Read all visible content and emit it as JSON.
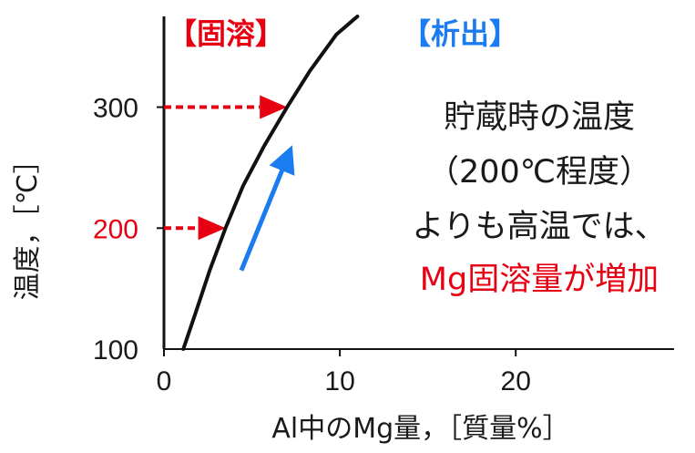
{
  "chart_data": {
    "type": "line",
    "xlabel": "Al中のMg量，［質量%］",
    "ylabel": "温度，［℃］",
    "xlim": [
      0,
      29
    ],
    "ylim": [
      100,
      375
    ],
    "xticks": [
      "0",
      "10",
      "20"
    ],
    "yticks": [
      "100",
      "200",
      "300"
    ],
    "highlight_tick": "200",
    "series": [
      {
        "x": [
          1.1,
          1.8,
          2.6,
          3.5,
          4.5,
          5.7,
          7.0,
          8.3,
          9.8,
          11.0
        ],
        "y": [
          100,
          130,
          165,
          200,
          235,
          268,
          300,
          330,
          360,
          375
        ]
      }
    ],
    "regions": {
      "left": {
        "label": "【固溶】",
        "color": "#e60012"
      },
      "right": {
        "label": "【析出】",
        "color": "#1a7cf0"
      }
    },
    "markers": [
      {
        "from_x": 0,
        "to_x": 7.0,
        "y": 300,
        "color": "#e60012"
      },
      {
        "from_x": 0,
        "to_x": 3.5,
        "y": 200,
        "color": "#e60012"
      }
    ],
    "trend_arrow": {
      "from": [
        4.4,
        165
      ],
      "to": [
        7.0,
        258
      ],
      "color": "#1a7cf0"
    },
    "annotation": {
      "lines": [
        "貯蔵時の温度",
        "（200℃程度）",
        "よりも高温では、"
      ],
      "highlight_line": "Mg固溶量が増加",
      "highlight_color": "#e60012"
    },
    "grid": false
  }
}
